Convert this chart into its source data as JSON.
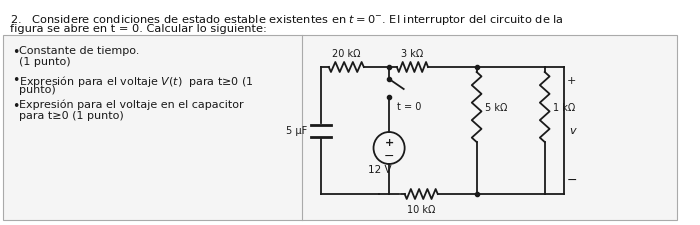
{
  "bg_color": "#ffffff",
  "panel_bg": "#f5f5f5",
  "border_color": "#aaaaaa",
  "text_color": "#111111",
  "line_color": "#1a1a1a",
  "title_line1": "2.   Considere condiciones de estado estable existentes en ",
  "title_t0": "t",
  "title_line1b": " = 0",
  "title_sup": "⁻",
  "title_line1c": ". El interruptor del circuito de la",
  "title_line2": "figura se abre en t = 0. Calcular lo siguiente:",
  "bullet1a": "Constante de tiempo.",
  "bullet1b": "(1 punto)",
  "bullet2": "Expresión para el voltaje V(t)  para t≥0 (1\npunto)",
  "bullet3": "Expresión para el voltaje en el capacitor\npara t≥0 (1 punto)",
  "r1_label": "20 kΩ",
  "r2_label": "3 kΩ",
  "c1_label": "5 μF",
  "v1_label": "12 V",
  "r3_label": "5 kΩ",
  "r4_label": "1 kΩ",
  "r5_label": "10 kΩ",
  "sw_label": "t = 0",
  "v_plus": "+",
  "v_minus": "−",
  "v_label": "v",
  "figsize": [
    7.0,
    2.26
  ],
  "dpi": 100
}
